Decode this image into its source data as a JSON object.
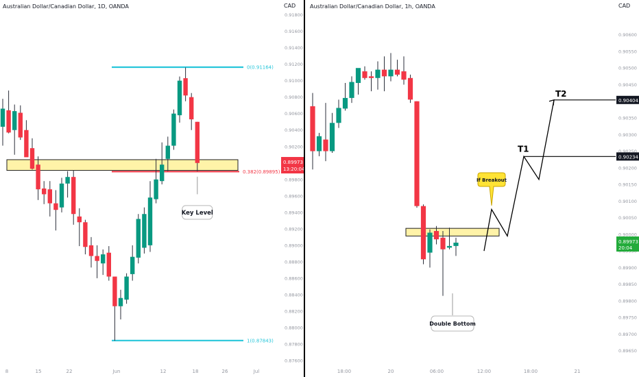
{
  "colors": {
    "up": "#089981",
    "down": "#f23645",
    "fib": "#26c6da",
    "zone_fill": "#fff3a8",
    "zone_stroke": "#1e1e1e",
    "price_bg": "#f23645",
    "price_bg_right": "#22ab3a",
    "tag_bg": "#131722",
    "axis_text": "#9598a1",
    "callout_fill": "#ffe335"
  },
  "left_panel": {
    "title": "Australian Dollar/Canadian Dollar, 1D, OANDA",
    "currency": "CAD",
    "price_ticks": [
      "0.91800",
      "0.91600",
      "0.91400",
      "0.91200",
      "0.91000",
      "0.90800",
      "0.90600",
      "0.90400",
      "0.90200",
      "0.90000",
      "0.89800",
      "0.89600",
      "0.89400",
      "0.89200",
      "0.89000",
      "0.88800",
      "0.88600",
      "0.88400",
      "0.88200",
      "0.88000",
      "0.87800",
      "0.87600"
    ],
    "time_ticks": [
      "8",
      "15",
      "22",
      "Jun",
      "12",
      "18",
      "26",
      "Jul"
    ],
    "fib_top_label": "0(0.91164)",
    "fib_bottom_label": "1(0.87843)",
    "fib_mid_label": "0.382(0.89895)",
    "last_price": "0.89973",
    "countdown": "13:20:04",
    "key_level_label": "Key Level"
  },
  "right_panel": {
    "title": "Australian Dollar/Canadian Dollar, 1h, OANDA",
    "currency": "CAD",
    "price_ticks": [
      "0.90600",
      "0.90550",
      "0.90500",
      "0.90450",
      "0.90400",
      "0.90350",
      "0.90300",
      "0.90250",
      "0.90200",
      "0.90150",
      "0.90100",
      "0.90050",
      "0.90000",
      "0.89950",
      "0.89900",
      "0.89850",
      "0.89800",
      "0.89750",
      "0.89700",
      "0.89650"
    ],
    "time_ticks": [
      "18:00",
      "20",
      "06:00",
      "12:00",
      "18:00",
      "21"
    ],
    "t1_label": "T1",
    "t2_label": "T2",
    "t1_price": "0.90234",
    "t2_price": "0.90404",
    "last_price": "0.89973",
    "countdown": "20:04",
    "breakout_label": "If Breakout",
    "double_bottom_label": "Double Bottom"
  },
  "chart_data": [
    {
      "type": "candlestick",
      "title": "Australian Dollar/Canadian Dollar, 1D, OANDA",
      "ylim": [
        0.8755,
        0.9188
      ],
      "ohlc": [
        [
          0.9044,
          0.9078,
          0.9021,
          0.9066
        ],
        [
          0.9064,
          0.9088,
          0.9036,
          0.9037
        ],
        [
          0.904,
          0.9071,
          0.901,
          0.9063
        ],
        [
          0.9061,
          0.907,
          0.9028,
          0.9031
        ],
        [
          0.904,
          0.9052,
          0.9008,
          0.9007
        ],
        [
          0.9018,
          0.903,
          0.8992,
          0.8993
        ],
        [
          0.8998,
          0.9008,
          0.8955,
          0.8968
        ],
        [
          0.8969,
          0.8978,
          0.895,
          0.8962
        ],
        [
          0.8968,
          0.8978,
          0.8935,
          0.8951
        ],
        [
          0.8951,
          0.8967,
          0.8918,
          0.8943
        ],
        [
          0.8946,
          0.8982,
          0.894,
          0.8975
        ],
        [
          0.8975,
          0.899,
          0.8958,
          0.8983
        ],
        [
          0.8983,
          0.8991,
          0.8925,
          0.8938
        ],
        [
          0.8935,
          0.8945,
          0.8899,
          0.8928
        ],
        [
          0.8928,
          0.8931,
          0.8889,
          0.8898
        ],
        [
          0.89,
          0.891,
          0.8873,
          0.8887
        ],
        [
          0.8887,
          0.89,
          0.886,
          0.8881
        ],
        [
          0.8878,
          0.8895,
          0.8864,
          0.8889
        ],
        [
          0.8891,
          0.8899,
          0.8857,
          0.8862
        ],
        [
          0.8862,
          0.8862,
          0.8784,
          0.8826
        ],
        [
          0.8826,
          0.8846,
          0.881,
          0.8836
        ],
        [
          0.8834,
          0.8866,
          0.8829,
          0.8862
        ],
        [
          0.8865,
          0.89,
          0.8857,
          0.8886
        ],
        [
          0.8885,
          0.8938,
          0.8878,
          0.8932
        ],
        [
          0.8897,
          0.8946,
          0.889,
          0.8938
        ],
        [
          0.89,
          0.8978,
          0.8892,
          0.8958
        ],
        [
          0.8956,
          0.9005,
          0.8951,
          0.898
        ],
        [
          0.8978,
          0.9025,
          0.8974,
          0.8998
        ],
        [
          0.9005,
          0.9032,
          0.899,
          0.9021
        ],
        [
          0.9021,
          0.9065,
          0.9016,
          0.906
        ],
        [
          0.9058,
          0.9105,
          0.9049,
          0.91
        ],
        [
          0.9103,
          0.9116,
          0.9075,
          0.9082
        ],
        [
          0.908,
          0.9085,
          0.904,
          0.9053
        ],
        [
          0.905,
          0.905,
          0.899,
          0.9
        ]
      ],
      "levels": [
        {
          "label": "0(0.91164)",
          "value": 0.91164
        },
        {
          "label": "0.382(0.89895)",
          "value": 0.89895
        },
        {
          "label": "1(0.87843)",
          "value": 0.87843
        }
      ],
      "zone": [
        0.8991,
        0.9004
      ],
      "annotations": [
        "Key Level"
      ]
    },
    {
      "type": "candlestick",
      "title": "Australian Dollar/Canadian Dollar, 1h, OANDA",
      "ylim": [
        0.89633,
        0.90622
      ],
      "ohlc": [
        [
          0.90385,
          0.90425,
          0.90195,
          0.9025
        ],
        [
          0.9025,
          0.90305,
          0.90235,
          0.90295
        ],
        [
          0.90285,
          0.90395,
          0.9022,
          0.9025
        ],
        [
          0.9025,
          0.90365,
          0.90245,
          0.90335
        ],
        [
          0.90335,
          0.90405,
          0.9032,
          0.9038
        ],
        [
          0.90378,
          0.90455,
          0.90372,
          0.9041
        ],
        [
          0.9041,
          0.90475,
          0.90395,
          0.90458
        ],
        [
          0.90455,
          0.90495,
          0.9042,
          0.905
        ],
        [
          0.9049,
          0.90505,
          0.90465,
          0.9047
        ],
        [
          0.90475,
          0.9049,
          0.9043,
          0.9047
        ],
        [
          0.9047,
          0.9052,
          0.90435,
          0.90495
        ],
        [
          0.90495,
          0.90535,
          0.9043,
          0.90475
        ],
        [
          0.90475,
          0.90545,
          0.9046,
          0.90495
        ],
        [
          0.90495,
          0.90525,
          0.90475,
          0.9048
        ],
        [
          0.9049,
          0.90535,
          0.9045,
          0.90465
        ],
        [
          0.9047,
          0.9048,
          0.90395,
          0.90405
        ],
        [
          0.904,
          0.904,
          0.9008,
          0.90085
        ],
        [
          0.90085,
          0.9009,
          0.8991,
          0.89925
        ],
        [
          0.89945,
          0.90015,
          0.899,
          0.90005
        ],
        [
          0.9001,
          0.90025,
          0.8997,
          0.89985
        ],
        [
          0.8999,
          0.9001,
          0.89815,
          0.89955
        ],
        [
          0.8996,
          0.9002,
          0.89955,
          0.89965
        ],
        [
          0.89965,
          0.8999,
          0.89935,
          0.89975
        ]
      ],
      "levels": [
        {
          "label": "T1",
          "value": 0.90234
        },
        {
          "label": "T2",
          "value": 0.90404
        }
      ],
      "zone": [
        0.89995,
        0.90018
      ],
      "projection": [
        0.8995,
        0.90075,
        0.89995,
        0.90234,
        0.90165,
        0.90404
      ],
      "annotations": [
        "If Breakout",
        "Double Bottom"
      ]
    }
  ]
}
